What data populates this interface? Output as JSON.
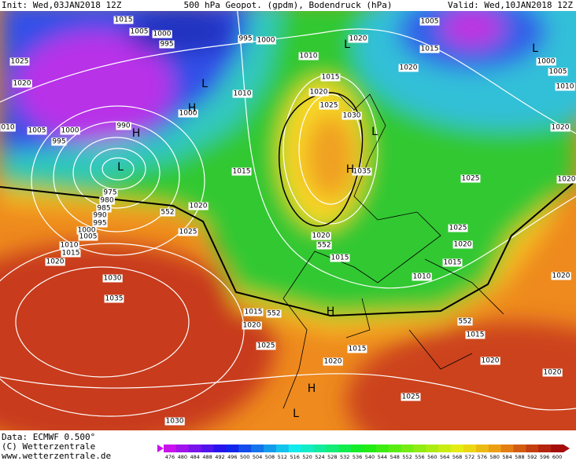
{
  "header": {
    "init": "Init: Wed,03JAN2018 12Z",
    "title": "500 hPa Geopot. (gpdm), Bodendruck (hPa)",
    "valid": "Valid: Wed,10JAN2018 12Z"
  },
  "footer": {
    "data": "Data: ECMWF  0.500°",
    "copyright": "(C) Wetterzentrale",
    "url": "www.wetterzentrale.de"
  },
  "colorbar": {
    "labels": [
      476,
      480,
      484,
      488,
      492,
      496,
      500,
      504,
      508,
      512,
      516,
      520,
      524,
      528,
      532,
      536,
      540,
      544,
      548,
      552,
      556,
      560,
      564,
      568,
      572,
      576,
      580,
      584,
      588,
      592,
      596,
      600
    ]
  },
  "map": {
    "isobar_labels": [
      "1015",
      "1005",
      "1000",
      "995",
      "995",
      "1000",
      "1020",
      "1005",
      "1015",
      "1025",
      "1020",
      "1010",
      "1015",
      "1020",
      "1000",
      "1005",
      "1010",
      "1010",
      "1020",
      "1025",
      "1030",
      "1000",
      "990",
      "010",
      "1005",
      "1000",
      "995",
      "1020",
      "1015",
      "1035",
      "1025",
      "1020",
      "975",
      "980",
      "985",
      "990",
      "995",
      "1000",
      "1005",
      "1010",
      "1015",
      "1020",
      "552",
      "1020",
      "1025",
      "1020",
      "552",
      "1015",
      "1025",
      "1020",
      "1015",
      "1010",
      "1020",
      "1030",
      "1035",
      "1015",
      "552",
      "1020",
      "1025",
      "1015",
      "552",
      "1015",
      "1020",
      "1020",
      "1020",
      "1025",
      "1030"
    ],
    "centers": [
      "L",
      "L",
      "L",
      "H",
      "H",
      "L",
      "L",
      "H",
      "H",
      "H",
      "L"
    ]
  }
}
